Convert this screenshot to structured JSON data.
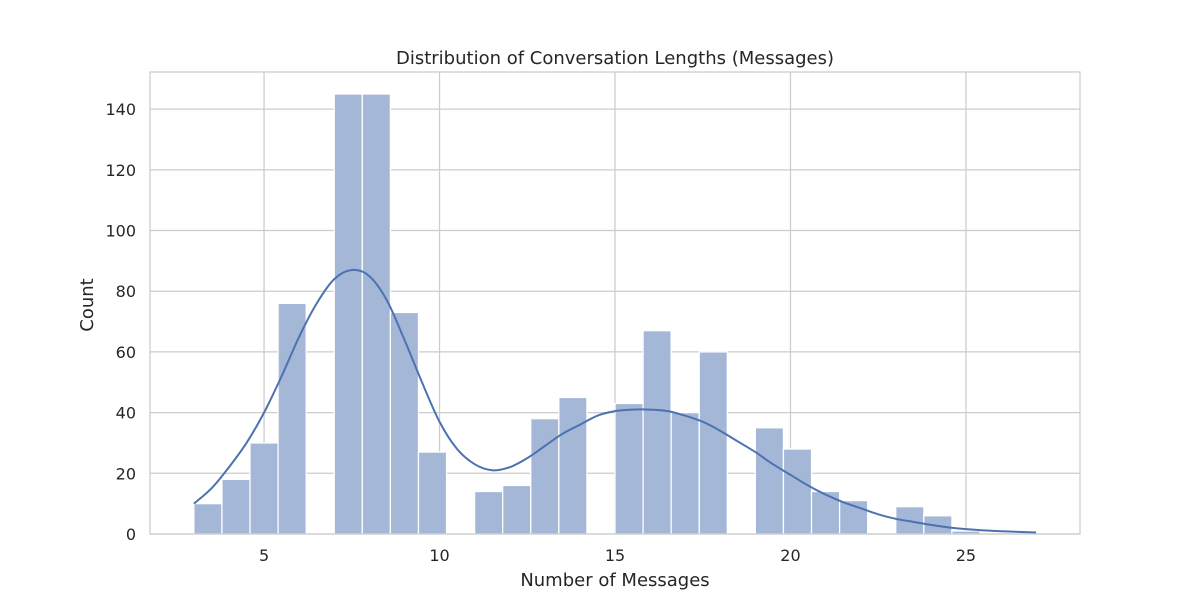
{
  "chart_data": {
    "type": "bar",
    "title": "Distribution of Conversation Lengths (Messages)",
    "xlabel": "Number of Messages",
    "ylabel": "Count",
    "xlim": [
      1.75,
      28.25
    ],
    "ylim": [
      0,
      152.25
    ],
    "xticks": [
      "5",
      "10",
      "15",
      "20",
      "25"
    ],
    "yticks": [
      "0",
      "20",
      "40",
      "60",
      "80",
      "100",
      "120",
      "140"
    ],
    "grid": true,
    "bin_width": 0.8,
    "bins": [
      {
        "start": 3.0,
        "count": 10
      },
      {
        "start": 3.8,
        "count": 18
      },
      {
        "start": 4.6,
        "count": 30
      },
      {
        "start": 5.4,
        "count": 76
      },
      {
        "start": 6.2,
        "count": 0
      },
      {
        "start": 7.0,
        "count": 145
      },
      {
        "start": 7.8,
        "count": 145
      },
      {
        "start": 8.6,
        "count": 73
      },
      {
        "start": 9.4,
        "count": 27
      },
      {
        "start": 10.2,
        "count": 0
      },
      {
        "start": 11.0,
        "count": 14
      },
      {
        "start": 11.8,
        "count": 16
      },
      {
        "start": 12.6,
        "count": 38
      },
      {
        "start": 13.4,
        "count": 45
      },
      {
        "start": 14.2,
        "count": 0
      },
      {
        "start": 15.0,
        "count": 43
      },
      {
        "start": 15.8,
        "count": 67
      },
      {
        "start": 16.6,
        "count": 40
      },
      {
        "start": 17.4,
        "count": 60
      },
      {
        "start": 18.2,
        "count": 0
      },
      {
        "start": 19.0,
        "count": 35
      },
      {
        "start": 19.8,
        "count": 28
      },
      {
        "start": 20.6,
        "count": 14
      },
      {
        "start": 21.4,
        "count": 11
      },
      {
        "start": 22.2,
        "count": 0
      },
      {
        "start": 23.0,
        "count": 9
      },
      {
        "start": 23.8,
        "count": 6
      },
      {
        "start": 24.6,
        "count": 1
      }
    ],
    "kde": {
      "x": [
        3.0,
        3.5,
        4.0,
        4.5,
        5.0,
        5.5,
        6.0,
        6.5,
        7.0,
        7.5,
        8.0,
        8.5,
        9.0,
        9.5,
        10.0,
        10.5,
        11.0,
        11.5,
        12.0,
        12.5,
        13.0,
        13.5,
        14.0,
        14.5,
        15.0,
        15.5,
        16.0,
        16.5,
        17.0,
        17.5,
        18.0,
        18.5,
        19.0,
        19.5,
        20.0,
        20.5,
        21.0,
        21.5,
        22.0,
        22.5,
        23.0,
        23.5,
        24.0,
        24.5,
        25.0,
        25.5,
        26.0,
        26.5,
        27.0
      ],
      "y": [
        10,
        15,
        22,
        30,
        40,
        52,
        65,
        76,
        84,
        87,
        85,
        77,
        64,
        50,
        37,
        28,
        23,
        21,
        22,
        25,
        29,
        33,
        36,
        39,
        40.5,
        41,
        41,
        40.5,
        39,
        37,
        34,
        30.5,
        27,
        23,
        19.5,
        16,
        13,
        10.5,
        8.5,
        6.5,
        5,
        4,
        3,
        2.2,
        1.6,
        1.2,
        0.9,
        0.7,
        0.5
      ]
    },
    "colors": {
      "bar_fill": "#a5b7d7",
      "bar_stroke": "#ffffff",
      "kde_line": "#4c72b0",
      "grid": "#cccccc",
      "spine": "#cccccc"
    }
  }
}
